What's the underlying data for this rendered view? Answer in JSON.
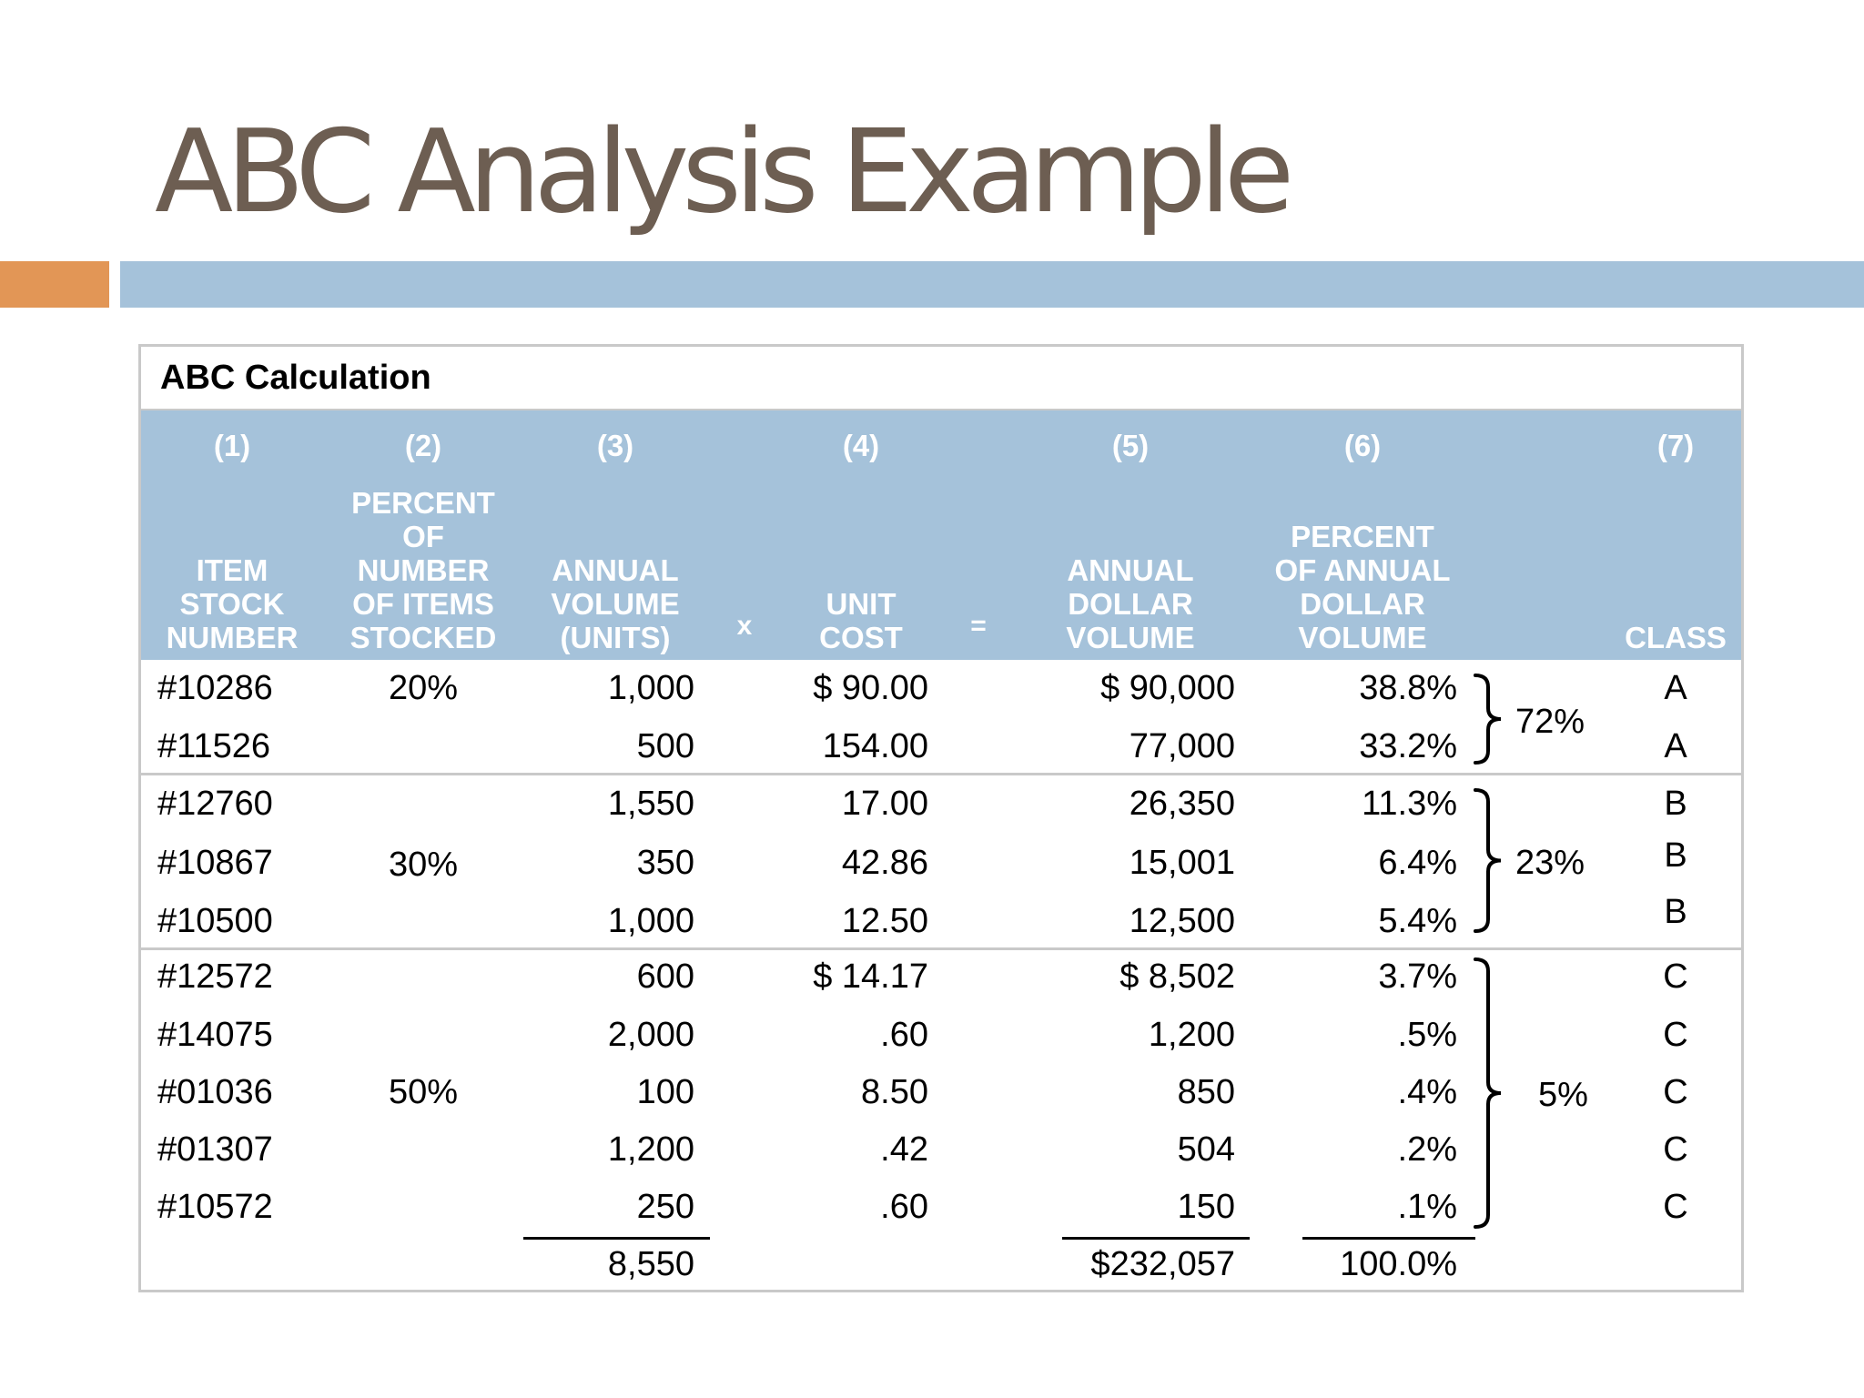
{
  "slide": {
    "title": "ABC Analysis Example"
  },
  "table": {
    "caption": "ABC Calculation",
    "columns": [
      {
        "num": "(1)",
        "label": [
          "ITEM",
          "STOCK",
          "NUMBER"
        ]
      },
      {
        "num": "(2)",
        "label": [
          "PERCENT",
          "OF",
          "NUMBER",
          "OF ITEMS",
          "STOCKED"
        ]
      },
      {
        "num": "(3)",
        "label": [
          "ANNUAL",
          "VOLUME",
          "(UNITS)"
        ]
      },
      {
        "num": "(4)",
        "label": [
          "UNIT",
          "COST"
        ]
      },
      {
        "num": "(5)",
        "label": [
          "ANNUAL",
          "DOLLAR",
          "VOLUME"
        ]
      },
      {
        "num": "(6)",
        "label": [
          "PERCENT",
          "OF ANNUAL",
          "DOLLAR",
          "VOLUME"
        ]
      },
      {
        "num": "(7)",
        "label": [
          "CLASS"
        ]
      }
    ],
    "operators": {
      "times": "x",
      "equals": "="
    },
    "rows": [
      {
        "item": "#10286",
        "pct_items": "20%",
        "volume": "1,000",
        "unit_cost": "$ 90.00",
        "dollar_volume": "$ 90,000",
        "pct_dollar": "38.8%",
        "class": "A"
      },
      {
        "item": "#11526",
        "pct_items": "",
        "volume": "500",
        "unit_cost": "154.00",
        "dollar_volume": "77,000",
        "pct_dollar": "33.2%",
        "class": "A"
      },
      {
        "item": "#12760",
        "pct_items": "",
        "volume": "1,550",
        "unit_cost": "17.00",
        "dollar_volume": "26,350",
        "pct_dollar": "11.3%",
        "class": "B"
      },
      {
        "item": "#10867",
        "pct_items": "30%",
        "volume": "350",
        "unit_cost": "42.86",
        "dollar_volume": "15,001",
        "pct_dollar": "6.4%",
        "class": "B"
      },
      {
        "item": "#10500",
        "pct_items": "",
        "volume": "1,000",
        "unit_cost": "12.50",
        "dollar_volume": "12,500",
        "pct_dollar": "5.4%",
        "class": "B"
      },
      {
        "item": "#12572",
        "pct_items": "",
        "volume": "600",
        "unit_cost": "$ 14.17",
        "dollar_volume": "$ 8,502",
        "pct_dollar": "3.7%",
        "class": "C"
      },
      {
        "item": "#14075",
        "pct_items": "",
        "volume": "2,000",
        "unit_cost": ".60",
        "dollar_volume": "1,200",
        "pct_dollar": ".5%",
        "class": "C"
      },
      {
        "item": "#01036",
        "pct_items": "50%",
        "volume": "100",
        "unit_cost": "8.50",
        "dollar_volume": "850",
        "pct_dollar": ".4%",
        "class": "C"
      },
      {
        "item": "#01307",
        "pct_items": "",
        "volume": "1,200",
        "unit_cost": ".42",
        "dollar_volume": "504",
        "pct_dollar": ".2%",
        "class": "C"
      },
      {
        "item": "#10572",
        "pct_items": "",
        "volume": "250",
        "unit_cost": ".60",
        "dollar_volume": "150",
        "pct_dollar": ".1%",
        "class": "C"
      }
    ],
    "group_totals": [
      {
        "class": "A",
        "value": "72%"
      },
      {
        "class": "B",
        "value": "23%"
      },
      {
        "class": "C",
        "value": "5%"
      }
    ],
    "totals": {
      "volume": "8,550",
      "dollar_volume": "$232,057",
      "pct_dollar": "100.0%"
    }
  }
}
